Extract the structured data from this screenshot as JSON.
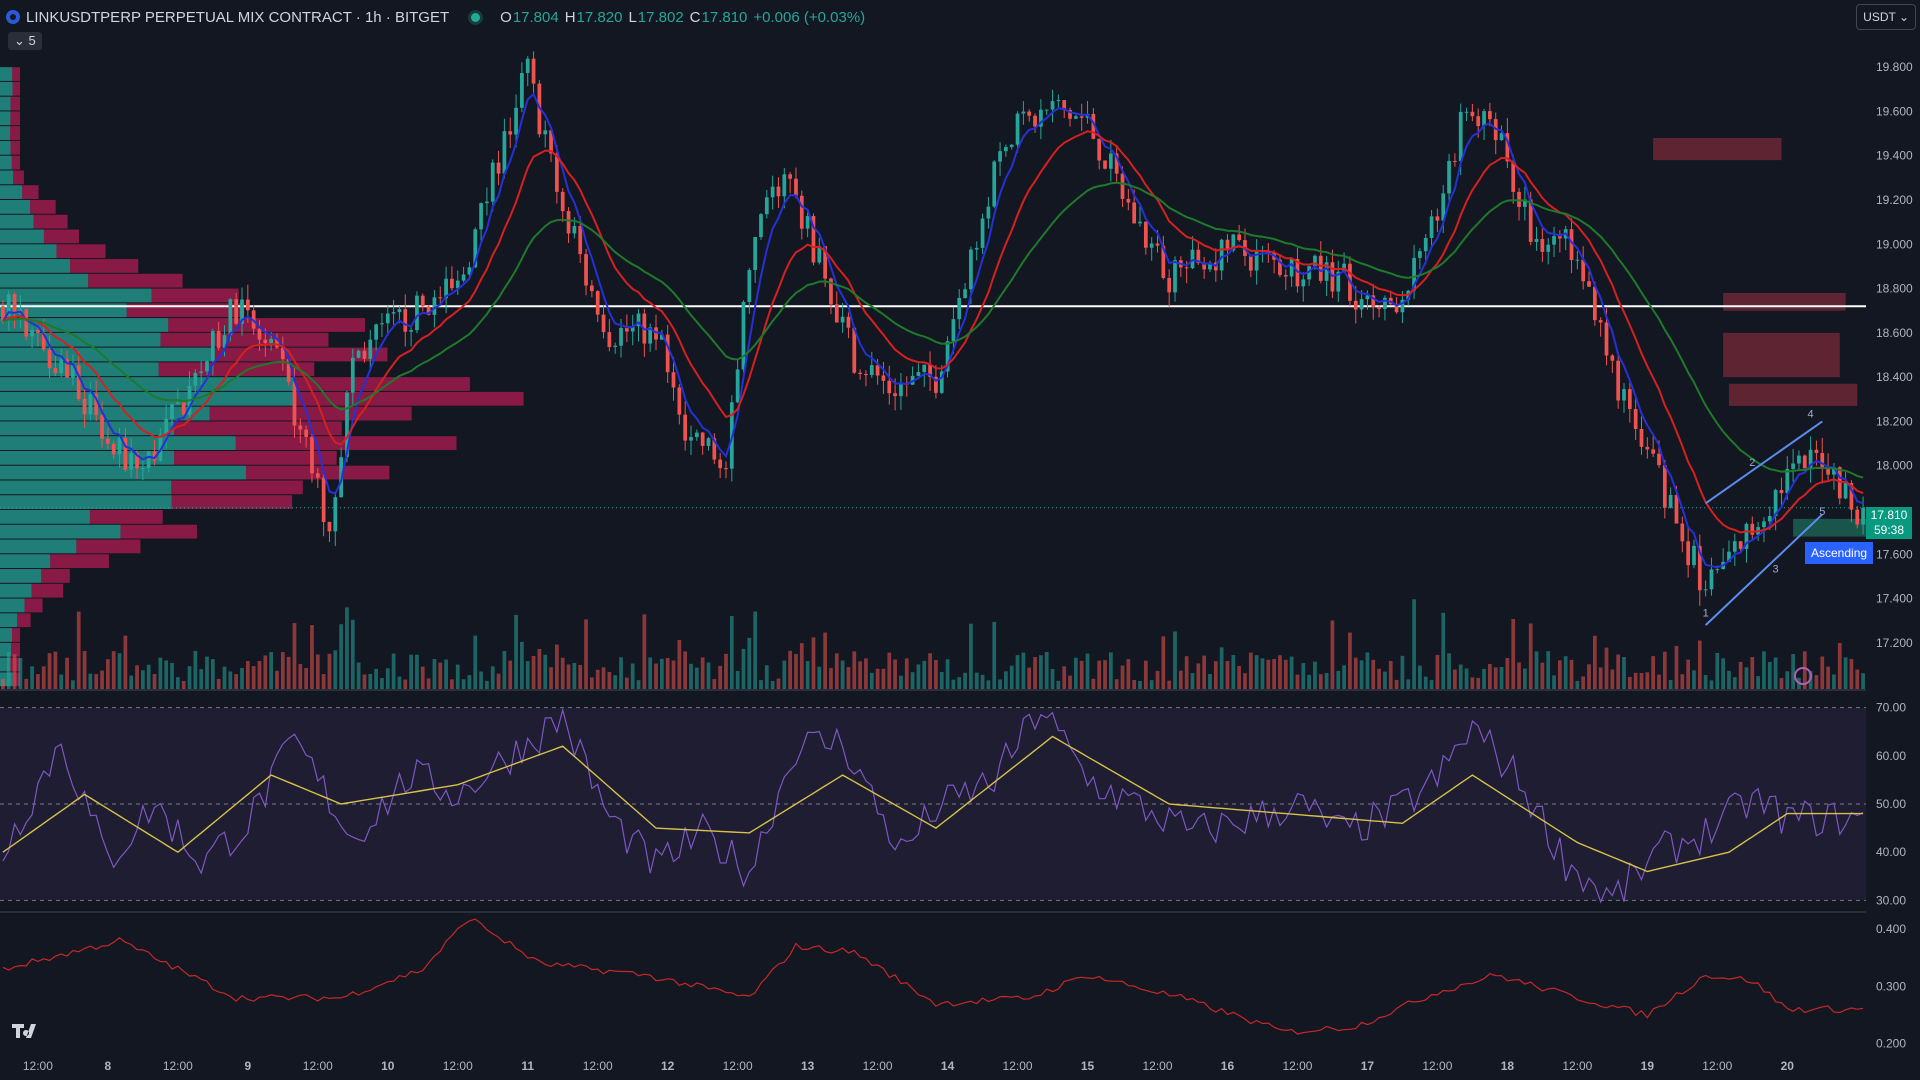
{
  "header": {
    "symbol_title": "LINKUSDTPERP PERPETUAL MIX CONTRACT · 1h · BITGET",
    "open_label": "O",
    "open_value": "17.804",
    "high_label": "H",
    "high_value": "17.820",
    "low_label": "L",
    "low_value": "17.802",
    "close_label": "C",
    "close_value": "17.810",
    "change": "+0.006 (+0.03%)",
    "collapse_label": "5",
    "currency_button": "USDT"
  },
  "colors": {
    "background": "#131722",
    "bull": "#26a69a",
    "bear": "#ef5350",
    "ema_fast": "#2431d6",
    "ema_mid": "#d62020",
    "ema_slow": "#1e7a2a",
    "rsi": "#7e57c2",
    "rsi_ma": "#d7c14a",
    "lower_indicator": "#c62828",
    "volume_profile_up": "#26a69a",
    "volume_profile_down": "#e91e63"
  },
  "price_tag": {
    "price": "17.810",
    "countdown": "59:38"
  },
  "pattern_label": "Ascending",
  "axes": {
    "price_ticks": [
      "19.800",
      "19.600",
      "19.400",
      "19.200",
      "19.000",
      "18.800",
      "18.600",
      "18.400",
      "18.200",
      "18.000",
      "17.600",
      "17.400",
      "17.200"
    ],
    "rsi_ticks": [
      "70.00",
      "60.00",
      "50.00",
      "40.00",
      "30.00"
    ],
    "lower_ticks": [
      "0.400",
      "0.300",
      "0.200"
    ],
    "time_ticks": [
      "12:00",
      "8",
      "12:00",
      "9",
      "12:00",
      "10",
      "12:00",
      "11",
      "12:00",
      "12",
      "12:00",
      "13",
      "12:00",
      "14",
      "12:00",
      "15",
      "12:00",
      "16",
      "12:00",
      "17",
      "12:00",
      "18",
      "12:00",
      "19",
      "12:00",
      "20"
    ]
  },
  "chart_data": [
    {
      "type": "candlestick",
      "series": [
        {
          "name": "LINKUSDTPERP",
          "anchors": [
            [
              0,
              18.72
            ],
            [
              12,
              18.42
            ],
            [
              18,
              18.08
            ],
            [
              24,
              17.98
            ],
            [
              30,
              18.25
            ],
            [
              40,
              18.72
            ],
            [
              48,
              18.42
            ],
            [
              56,
              17.72
            ],
            [
              60,
              18.48
            ],
            [
              66,
              18.62
            ],
            [
              78,
              18.8
            ],
            [
              90,
              19.78
            ],
            [
              96,
              19.15
            ],
            [
              104,
              18.6
            ],
            [
              112,
              18.62
            ],
            [
              116,
              18.22
            ],
            [
              124,
              17.98
            ],
            [
              128,
              18.92
            ],
            [
              134,
              19.35
            ],
            [
              138,
              19.05
            ],
            [
              146,
              18.5
            ],
            [
              152,
              18.35
            ],
            [
              160,
              18.4
            ],
            [
              166,
              18.95
            ],
            [
              172,
              19.48
            ],
            [
              180,
              19.62
            ],
            [
              186,
              19.55
            ],
            [
              194,
              19.12
            ],
            [
              200,
              18.85
            ],
            [
              210,
              18.98
            ],
            [
              220,
              18.9
            ],
            [
              230,
              18.85
            ],
            [
              236,
              18.65
            ],
            [
              244,
              18.95
            ],
            [
              250,
              19.55
            ],
            [
              256,
              19.55
            ],
            [
              262,
              19.05
            ],
            [
              270,
              18.99
            ],
            [
              276,
              18.4
            ],
            [
              282,
              18.05
            ],
            [
              292,
              17.45
            ],
            [
              300,
              17.72
            ],
            [
              306,
              17.95
            ],
            [
              312,
              18.05
            ],
            [
              318,
              17.81
            ]
          ]
        },
        {
          "name": "Volume",
          "range": [
            0,
            110
          ]
        }
      ],
      "ema_series": [
        "fast",
        "mid",
        "slow"
      ],
      "horizontal_line": 18.72,
      "current_price": 17.81,
      "ylim": [
        17.1,
        19.9
      ],
      "bars": 320,
      "supply_zones": [
        {
          "from_bar": 283,
          "to_bar": 305,
          "low": 19.38,
          "high": 19.48
        },
        {
          "from_bar": 295,
          "to_bar": 316,
          "low": 18.7,
          "high": 18.78
        },
        {
          "from_bar": 295,
          "to_bar": 315,
          "low": 18.4,
          "high": 18.6
        },
        {
          "from_bar": 296,
          "to_bar": 318,
          "low": 18.27,
          "high": 18.37
        },
        {
          "from_bar": 307,
          "to_bar": 320,
          "low": 17.68,
          "high": 17.76
        }
      ],
      "channel": {
        "points": [
          "1",
          "2",
          "3",
          "4",
          "5"
        ],
        "lower": [
          [
            292,
            17.28
          ],
          [
            312,
            17.78
          ]
        ],
        "upper": [
          [
            292,
            17.83
          ],
          [
            312,
            18.2
          ]
        ]
      },
      "volume_profile": {
        "rows": 42,
        "price_low": 17.0,
        "price_high": 19.8
      }
    },
    {
      "type": "line",
      "name": "RSI",
      "ylim": [
        28,
        72
      ],
      "levels": [
        70,
        50,
        30
      ],
      "anchors": [
        [
          0,
          40
        ],
        [
          10,
          63
        ],
        [
          18,
          38
        ],
        [
          26,
          50
        ],
        [
          34,
          38
        ],
        [
          42,
          46
        ],
        [
          50,
          63
        ],
        [
          60,
          43
        ],
        [
          70,
          56
        ],
        [
          78,
          52
        ],
        [
          88,
          61
        ],
        [
          96,
          68
        ],
        [
          104,
          47
        ],
        [
          112,
          37
        ],
        [
          120,
          44
        ],
        [
          128,
          36
        ],
        [
          136,
          62
        ],
        [
          144,
          63
        ],
        [
          154,
          40
        ],
        [
          160,
          49
        ],
        [
          170,
          55
        ],
        [
          178,
          70
        ],
        [
          186,
          55
        ],
        [
          194,
          50
        ],
        [
          204,
          44
        ],
        [
          214,
          47
        ],
        [
          222,
          50
        ],
        [
          230,
          44
        ],
        [
          238,
          48
        ],
        [
          246,
          55
        ],
        [
          252,
          66
        ],
        [
          260,
          55
        ],
        [
          268,
          38
        ],
        [
          276,
          30
        ],
        [
          284,
          40
        ],
        [
          292,
          44
        ],
        [
          300,
          51
        ],
        [
          306,
          47
        ]
      ],
      "ma_anchors": [
        [
          0,
          40
        ],
        [
          14,
          52
        ],
        [
          30,
          40
        ],
        [
          46,
          56
        ],
        [
          58,
          50
        ],
        [
          78,
          54
        ],
        [
          96,
          62
        ],
        [
          112,
          45
        ],
        [
          128,
          44
        ],
        [
          144,
          56
        ],
        [
          160,
          45
        ],
        [
          180,
          64
        ],
        [
          200,
          50
        ],
        [
          220,
          48
        ],
        [
          240,
          46
        ],
        [
          252,
          56
        ],
        [
          270,
          42
        ],
        [
          282,
          36
        ],
        [
          296,
          40
        ],
        [
          306,
          48
        ]
      ]
    },
    {
      "type": "line",
      "name": "lower indicator",
      "ylim": [
        0.18,
        0.43
      ],
      "anchors": [
        [
          0,
          0.33
        ],
        [
          20,
          0.38
        ],
        [
          40,
          0.28
        ],
        [
          58,
          0.28
        ],
        [
          72,
          0.33
        ],
        [
          80,
          0.42
        ],
        [
          92,
          0.34
        ],
        [
          110,
          0.32
        ],
        [
          128,
          0.28
        ],
        [
          136,
          0.37
        ],
        [
          146,
          0.36
        ],
        [
          160,
          0.27
        ],
        [
          176,
          0.28
        ],
        [
          186,
          0.32
        ],
        [
          202,
          0.28
        ],
        [
          220,
          0.22
        ],
        [
          232,
          0.23
        ],
        [
          246,
          0.29
        ],
        [
          256,
          0.32
        ],
        [
          270,
          0.28
        ],
        [
          282,
          0.25
        ],
        [
          292,
          0.32
        ],
        [
          300,
          0.31
        ],
        [
          306,
          0.26
        ]
      ]
    }
  ]
}
